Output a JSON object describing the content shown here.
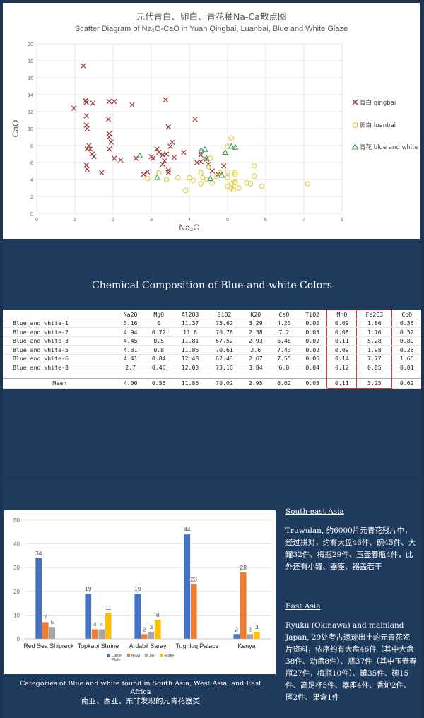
{
  "scatter": {
    "title_cn": "元代青白、卵白、青花釉Na-Ca散点图",
    "title_en": "Scatter Diagram of Na₂O-CaO in Yuan Qingbai, Luanbai, Blue and White Glaze",
    "xlabel": "Na₂O",
    "ylabel": "CaO",
    "legend": [
      "青白 qingbai",
      "卵白 luanbai",
      "青花 blue and white"
    ],
    "colors": {
      "qingbai": "#9b3535",
      "luanbai": "#e0cb28",
      "bw": "#3f9c55"
    }
  },
  "composition": {
    "title": "Chemical Composition of Blue-and-white Colors",
    "headers": [
      "",
      "Na2O",
      "MgO",
      "Al2O3",
      "SiO2",
      "K2O",
      "CaO",
      "TiO2",
      "MnO",
      "Fe2O3",
      "CoO"
    ],
    "rows": [
      [
        "Blue and white-1",
        "3.16",
        "0",
        "11.37",
        "75.62",
        "3.29",
        "4.23",
        "0.02",
        "0.09",
        "1.86",
        "0.36"
      ],
      [
        "Blue and white-2",
        "4.94",
        "0.72",
        "11.6",
        "70.78",
        "2.38",
        "7.2",
        "0.03",
        "0.08",
        "1.76",
        "0.52"
      ],
      [
        "Blue and white-3",
        "4.45",
        "0.5",
        "11.81",
        "67.52",
        "2.93",
        "6.48",
        "0.02",
        "0.11",
        "5.28",
        "0.89"
      ],
      [
        "Blue and white-5",
        "4.31",
        "0.8",
        "11.86",
        "70.61",
        "2.6",
        "7.43",
        "0.02",
        "0.09",
        "1.98",
        "0.28"
      ],
      [
        "Blue and white-6",
        "4.41",
        "0.84",
        "12.48",
        "62.43",
        "2.67",
        "7.55",
        "0.05",
        "0.14",
        "7.77",
        "1.66"
      ],
      [
        "Blue and white-8",
        "2.7",
        "0.46",
        "12.03",
        "73.16",
        "3.84",
        "6.8",
        "0.04",
        "0.12",
        "0.85",
        "0.01"
      ]
    ],
    "mean": [
      "Mean",
      "4.00",
      "0.55",
      "11.86",
      "70.02",
      "2.95",
      "6.62",
      "0.03",
      "0.11",
      "3.25",
      "0.62"
    ]
  },
  "bar_caption": {
    "en": "Categories of Blue and white found in South Asia, West Asia, and East Africa",
    "cn": "南亚、西亚、东非发现的元青花器类"
  },
  "southeast": {
    "heading": "South-east Asia",
    "text": "Truwulan, 约6000片元青花残片中，经过拼对，约有大盘46件、碗45件、大罐32件、梅瓶29件、玉壶春瓶4件，此外还有小罐、器座、器盖若干"
  },
  "east": {
    "heading": "East Asia",
    "text": "Ryuku (Okinawa) and mainland Japan, 29处考古遗迹出土的元青花瓷片资料，依序约有大盘46件（其中大盘38件、劝盘8件）、瓶37件（其中玉壶春瓶27件，梅瓶10件）、罐35件、碗15件、高足杯5件、器座4件、香炉2件、匜2件、果盒1件"
  },
  "chart_data": [
    {
      "type": "scatter",
      "title": "Scatter Diagram of Na₂O-CaO in Yuan Qingbai, Luanbai, Blue and White Glaze",
      "xlabel": "Na₂O",
      "ylabel": "CaO",
      "xlim": [
        0,
        8
      ],
      "ylim": [
        0,
        20
      ],
      "xticks": [
        0,
        1,
        2,
        3,
        4,
        5,
        6,
        7,
        8
      ],
      "yticks": [
        0,
        2,
        4,
        6,
        8,
        10,
        12,
        14,
        16,
        18,
        20
      ],
      "grid": true,
      "legend_position": "right",
      "series": [
        {
          "name": "青白 qingbai",
          "marker": "x",
          "points": [
            [
              0.97,
              12.4
            ],
            [
              1.22,
              17.4
            ],
            [
              1.28,
              13.3
            ],
            [
              1.3,
              13.1
            ],
            [
              1.47,
              13.0
            ],
            [
              1.3,
              11.5
            ],
            [
              1.3,
              10.4
            ],
            [
              1.32,
              10.0
            ],
            [
              1.37,
              8.0
            ],
            [
              1.32,
              7.6
            ],
            [
              1.4,
              7.6
            ],
            [
              1.45,
              7.0
            ],
            [
              1.5,
              6.7
            ],
            [
              1.3,
              5.7
            ],
            [
              1.32,
              5.2
            ],
            [
              1.7,
              4.8
            ],
            [
              1.88,
              11.1
            ],
            [
              1.9,
              13.2
            ],
            [
              2.03,
              13.2
            ],
            [
              1.9,
              9.4
            ],
            [
              1.9,
              9.0
            ],
            [
              1.95,
              8.4
            ],
            [
              1.9,
              7.6
            ],
            [
              2.03,
              6.5
            ],
            [
              2.2,
              6.3
            ],
            [
              2.5,
              12.8
            ],
            [
              2.6,
              6.5
            ],
            [
              2.8,
              4.6
            ],
            [
              2.9,
              4.9
            ],
            [
              3.0,
              6.7
            ],
            [
              3.05,
              6.5
            ],
            [
              3.15,
              7.6
            ],
            [
              3.2,
              7.2
            ],
            [
              3.3,
              6.9
            ],
            [
              3.3,
              5.8
            ],
            [
              3.35,
              6.2
            ],
            [
              3.38,
              13.4
            ],
            [
              3.4,
              7.0
            ],
            [
              3.45,
              10.2
            ],
            [
              3.45,
              5.1
            ],
            [
              3.5,
              7.9
            ],
            [
              3.55,
              8.4
            ],
            [
              3.6,
              6.6
            ],
            [
              3.45,
              4.8
            ],
            [
              3.85,
              7.2
            ],
            [
              4.15,
              11.1
            ],
            [
              4.2,
              6.0
            ],
            [
              4.3,
              6.9
            ],
            [
              4.3,
              6.1
            ],
            [
              4.45,
              6.4
            ],
            [
              4.5,
              5.8
            ],
            [
              4.6,
              5.0
            ],
            [
              4.75,
              4.6
            ],
            [
              4.9,
              5.6
            ]
          ]
        },
        {
          "name": "卵白 luanbai",
          "marker": "circle-open",
          "points": [
            [
              5.1,
              8.9
            ],
            [
              5.0,
              7.9
            ],
            [
              4.55,
              6.5
            ],
            [
              4.5,
              5.5
            ],
            [
              4.3,
              4.8
            ],
            [
              4.35,
              4.2
            ],
            [
              4.45,
              4.0
            ],
            [
              4.6,
              3.6
            ],
            [
              4.3,
              3.5
            ],
            [
              4.1,
              3.9
            ],
            [
              4.0,
              4.2
            ],
            [
              3.7,
              4.2
            ],
            [
              3.4,
              4.0
            ],
            [
              3.2,
              4.8
            ],
            [
              2.9,
              4.1
            ],
            [
              3.9,
              2.7
            ],
            [
              4.7,
              4.4
            ],
            [
              4.8,
              4.8
            ],
            [
              5.0,
              4.9
            ],
            [
              5.2,
              4.8
            ],
            [
              5.2,
              4.6
            ],
            [
              5.0,
              4.2
            ],
            [
              5.1,
              3.5
            ],
            [
              5.2,
              3.6
            ],
            [
              5.1,
              3.0
            ],
            [
              5.3,
              3.0
            ],
            [
              5.5,
              3.6
            ],
            [
              5.6,
              3.5
            ],
            [
              5.7,
              4.4
            ],
            [
              5.7,
              5.6
            ],
            [
              5.9,
              3.2
            ],
            [
              5.2,
              3.7
            ],
            [
              5.0,
              3.2
            ],
            [
              7.1,
              3.5
            ],
            [
              5.15,
              2.8
            ]
          ]
        },
        {
          "name": "青花 blue and white",
          "marker": "triangle-open",
          "points": [
            [
              3.16,
              4.23
            ],
            [
              4.94,
              7.2
            ],
            [
              4.45,
              6.48
            ],
            [
              4.31,
              7.43
            ],
            [
              4.41,
              7.55
            ],
            [
              2.7,
              6.8
            ],
            [
              4.85,
              4.5
            ],
            [
              4.55,
              4.1
            ],
            [
              5.1,
              7.9
            ],
            [
              5.2,
              7.8
            ]
          ]
        }
      ]
    },
    {
      "type": "bar",
      "categories": [
        "Red Sea Shipreck",
        "Topkapi Shrine",
        "Ardabil Saray",
        "Tughluq Palace",
        "Kenya"
      ],
      "ylim": [
        0,
        50
      ],
      "yticks": [
        0,
        10,
        20,
        30,
        40,
        50
      ],
      "grid": true,
      "legend_position": "bottom",
      "series": [
        {
          "name": "Large Plate",
          "color": "#4472c4",
          "values": [
            34,
            19,
            19,
            44,
            2
          ]
        },
        {
          "name": "Bowl",
          "color": "#ed7d31",
          "values": [
            7,
            4,
            2,
            23,
            28
          ]
        },
        {
          "name": "Jar",
          "color": "#a5a5a5",
          "values": [
            5,
            4,
            3,
            null,
            2
          ]
        },
        {
          "name": "Bottle",
          "color": "#ffc000",
          "values": [
            null,
            11,
            8,
            null,
            3
          ]
        }
      ]
    }
  ]
}
